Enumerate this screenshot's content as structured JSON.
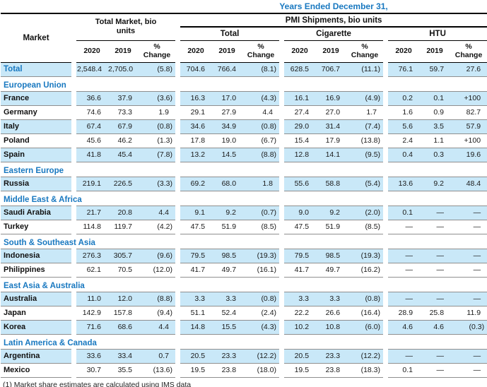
{
  "colors": {
    "accent_blue": "#1878c0",
    "row_highlight": "#c9e8f8",
    "rule_black": "#000000",
    "rule_gray": "#8f8f8f"
  },
  "header": {
    "title": "Years Ended December 31,",
    "market_col": "Market",
    "total_market_group": "Total Market, bio units",
    "pmi_group": "PMI Shipments, bio units",
    "subgroups": [
      "Total",
      "Cigarette",
      "HTU"
    ],
    "year_columns": [
      "2020",
      "2019",
      "% Change"
    ]
  },
  "table": {
    "rows": [
      {
        "type": "total",
        "label": "Total",
        "values": [
          "2,548.4",
          "2,705.0",
          "(5.8)",
          "704.6",
          "766.4",
          "(8.1)",
          "628.5",
          "706.7",
          "(11.1)",
          "76.1",
          "59.7",
          "27.6"
        ]
      },
      {
        "type": "section",
        "label": "European Union"
      },
      {
        "type": "data",
        "label": "France",
        "values": [
          "36.6",
          "37.9",
          "(3.6)",
          "16.3",
          "17.0",
          "(4.3)",
          "16.1",
          "16.9",
          "(4.9)",
          "0.2",
          "0.1",
          "+100"
        ]
      },
      {
        "type": "data",
        "label": "Germany",
        "values": [
          "74.6",
          "73.3",
          "1.9",
          "29.1",
          "27.9",
          "4.4",
          "27.4",
          "27.0",
          "1.7",
          "1.6",
          "0.9",
          "82.7"
        ]
      },
      {
        "type": "data",
        "label": "Italy",
        "values": [
          "67.4",
          "67.9",
          "(0.8)",
          "34.6",
          "34.9",
          "(0.8)",
          "29.0",
          "31.4",
          "(7.4)",
          "5.6",
          "3.5",
          "57.9"
        ]
      },
      {
        "type": "data",
        "label": "Poland",
        "values": [
          "45.6",
          "46.2",
          "(1.3)",
          "17.8",
          "19.0",
          "(6.7)",
          "15.4",
          "17.9",
          "(13.8)",
          "2.4",
          "1.1",
          "+100"
        ]
      },
      {
        "type": "data",
        "label": "Spain",
        "values": [
          "41.8",
          "45.4",
          "(7.8)",
          "13.2",
          "14.5",
          "(8.8)",
          "12.8",
          "14.1",
          "(9.5)",
          "0.4",
          "0.3",
          "19.6"
        ]
      },
      {
        "type": "section",
        "label": "Eastern Europe"
      },
      {
        "type": "data",
        "label": "Russia",
        "values": [
          "219.1",
          "226.5",
          "(3.3)",
          "69.2",
          "68.0",
          "1.8",
          "55.6",
          "58.8",
          "(5.4)",
          "13.6",
          "9.2",
          "48.4"
        ]
      },
      {
        "type": "section",
        "label": "Middle East & Africa"
      },
      {
        "type": "data",
        "label": "Saudi Arabia",
        "values": [
          "21.7",
          "20.8",
          "4.4",
          "9.1",
          "9.2",
          "(0.7)",
          "9.0",
          "9.2",
          "(2.0)",
          "0.1",
          "—",
          "—"
        ]
      },
      {
        "type": "data",
        "label": "Turkey",
        "values": [
          "114.8",
          "119.7",
          "(4.2)",
          "47.5",
          "51.9",
          "(8.5)",
          "47.5",
          "51.9",
          "(8.5)",
          "—",
          "—",
          "—"
        ]
      },
      {
        "type": "section",
        "label": "South & Southeast Asia"
      },
      {
        "type": "data",
        "label": "Indonesia",
        "values": [
          "276.3",
          "305.7",
          "(9.6)",
          "79.5",
          "98.5",
          "(19.3)",
          "79.5",
          "98.5",
          "(19.3)",
          "—",
          "—",
          "—"
        ]
      },
      {
        "type": "data",
        "label": "Philippines",
        "values": [
          "62.1",
          "70.5",
          "(12.0)",
          "41.7",
          "49.7",
          "(16.1)",
          "41.7",
          "49.7",
          "(16.2)",
          "—",
          "—",
          "—"
        ]
      },
      {
        "type": "section",
        "label": "East Asia & Australia"
      },
      {
        "type": "data",
        "label": "Australia",
        "values": [
          "11.0",
          "12.0",
          "(8.8)",
          "3.3",
          "3.3",
          "(0.8)",
          "3.3",
          "3.3",
          "(0.8)",
          "—",
          "—",
          "—"
        ]
      },
      {
        "type": "data",
        "label": "Japan",
        "values": [
          "142.9",
          "157.8",
          "(9.4)",
          "51.1",
          "52.4",
          "(2.4)",
          "22.2",
          "26.6",
          "(16.4)",
          "28.9",
          "25.8",
          "11.9"
        ]
      },
      {
        "type": "data",
        "label": "Korea",
        "values": [
          "71.6",
          "68.6",
          "4.4",
          "14.8",
          "15.5",
          "(4.3)",
          "10.2",
          "10.8",
          "(6.0)",
          "4.6",
          "4.6",
          "(0.3)"
        ]
      },
      {
        "type": "section",
        "label": "Latin America & Canada"
      },
      {
        "type": "data",
        "label": "Argentina",
        "values": [
          "33.6",
          "33.4",
          "0.7",
          "20.5",
          "23.3",
          "(12.2)",
          "20.5",
          "23.3",
          "(12.2)",
          "—",
          "—",
          "—"
        ]
      },
      {
        "type": "data",
        "label": "Mexico",
        "values": [
          "30.7",
          "35.5",
          "(13.6)",
          "19.5",
          "23.8",
          "(18.0)",
          "19.5",
          "23.8",
          "(18.3)",
          "0.1",
          "—",
          "—"
        ]
      }
    ]
  },
  "footnote": "(1) Market share estimates are calculated using IMS data"
}
